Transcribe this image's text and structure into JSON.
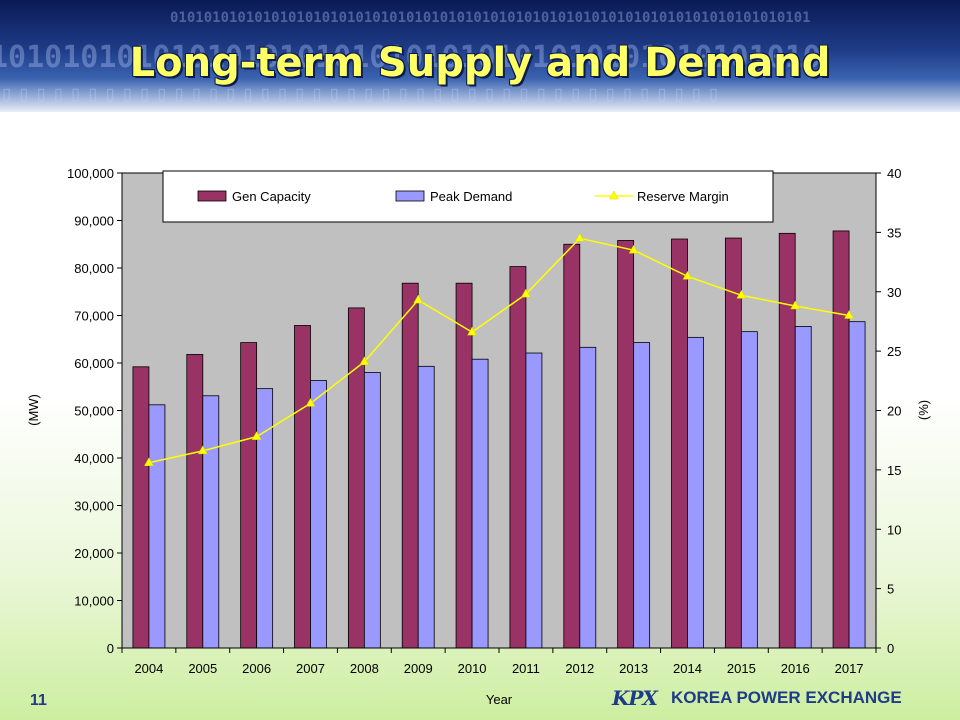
{
  "slide": {
    "title": "Long-term Supply and Demand",
    "page_number": "11",
    "footer_logo_mark": "KPX",
    "footer_logo_text": "KOREA POWER EXCHANGE"
  },
  "colors": {
    "gen_capacity": "#993366",
    "peak_demand": "#9999ff",
    "reserve_margin": "#ffff00",
    "plot_bg": "#c0c0c0",
    "title": "#ffff66"
  },
  "chart_data": {
    "type": "bar",
    "categories": [
      "2004",
      "2005",
      "2006",
      "2007",
      "2008",
      "2009",
      "2010",
      "2011",
      "2012",
      "2013",
      "2014",
      "2015",
      "2016",
      "2017"
    ],
    "series": [
      {
        "name": "Gen Capacity",
        "type": "bar",
        "axis": "left",
        "values": [
          59200,
          61800,
          64300,
          67900,
          71600,
          76800,
          76800,
          80300,
          85000,
          85800,
          86100,
          86300,
          87300,
          87800
        ]
      },
      {
        "name": "Peak Demand",
        "type": "bar",
        "axis": "left",
        "values": [
          51200,
          53100,
          54600,
          56300,
          58000,
          59300,
          60800,
          62100,
          63300,
          64300,
          65400,
          66600,
          67700,
          68700
        ]
      },
      {
        "name": "Reserve Margin",
        "type": "line",
        "axis": "right",
        "values": [
          15.6,
          16.6,
          17.8,
          20.6,
          24.1,
          29.3,
          26.6,
          29.8,
          34.5,
          33.5,
          31.3,
          29.7,
          28.8,
          28.0
        ]
      }
    ],
    "xlabel": "Year",
    "ylabel": "(MW)",
    "y2label": "(%)",
    "ylim": [
      0,
      100000
    ],
    "y2lim": [
      0,
      40
    ],
    "yticks": [
      "0",
      "10,000",
      "20,000",
      "30,000",
      "40,000",
      "50,000",
      "60,000",
      "70,000",
      "80,000",
      "90,000",
      "100,000"
    ],
    "y2ticks": [
      "0",
      "5",
      "10",
      "15",
      "20",
      "25",
      "30",
      "35",
      "40"
    ],
    "grid": false,
    "legend_position": "top-left inside plot"
  }
}
